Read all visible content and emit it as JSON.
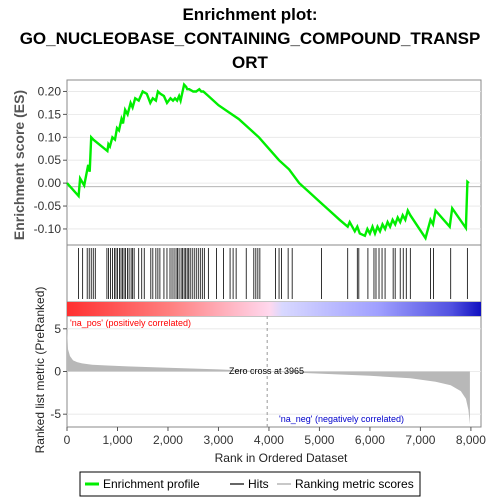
{
  "title_lines": [
    "Enrichment plot:",
    "GO_NUCLEOBASE_CONTAINING_COMPOUND_TRANSP",
    "ORT"
  ],
  "colors": {
    "es_line": "#00ee00",
    "hits": "#000000",
    "metric_fill": "#b8b8b8",
    "pos_label": "#ff0000",
    "neg_label": "#0000cc",
    "zero_line": "#999999"
  },
  "chart_data": [
    {
      "type": "line",
      "ylabel": "Enrichment score (ES)",
      "xlim": [
        0,
        8200
      ],
      "ylim": [
        -0.135,
        0.225
      ],
      "yticks": [
        -0.1,
        -0.05,
        0.0,
        0.05,
        0.1,
        0.15,
        0.2
      ],
      "ytick_labels": [
        "-0.10",
        "-0.05",
        "0.00",
        "0.05",
        "0.10",
        "0.15",
        "0.20"
      ],
      "series": [
        {
          "x": [
            0,
            230,
            260,
            340,
            420,
            450,
            480,
            520,
            800,
            820,
            850,
            900,
            950,
            990,
            1030,
            1080,
            1110,
            1150,
            1200,
            1260,
            1300,
            1350,
            1420,
            1500,
            1580,
            1650,
            1700,
            1760,
            1800,
            1850,
            1920,
            1980,
            2050,
            2100,
            2140,
            2180,
            2220,
            2250,
            2280,
            2320,
            2360,
            2380,
            2420,
            2500,
            2560,
            2620,
            2660,
            2700,
            2800,
            3000,
            3200,
            3400,
            3600,
            3800,
            4000,
            4200,
            4400,
            4600,
            4800,
            5000,
            5200,
            5400,
            5560,
            5600,
            5700,
            5750,
            5800,
            5900,
            5950,
            6000,
            6050,
            6100,
            6150,
            6200,
            6250,
            6300,
            6350,
            6400,
            6450,
            6500,
            6550,
            6600,
            6650,
            6700,
            6750,
            6800,
            7100,
            7200,
            7250,
            7300,
            7580,
            7630,
            7900,
            7930,
            7960
          ],
          "y": [
            0.0,
            -0.028,
            0.01,
            -0.005,
            0.04,
            0.025,
            0.1,
            0.095,
            0.07,
            0.085,
            0.08,
            0.1,
            0.095,
            0.12,
            0.115,
            0.14,
            0.13,
            0.16,
            0.15,
            0.175,
            0.165,
            0.185,
            0.18,
            0.2,
            0.195,
            0.175,
            0.185,
            0.18,
            0.2,
            0.195,
            0.19,
            0.175,
            0.185,
            0.18,
            0.185,
            0.18,
            0.19,
            0.18,
            0.195,
            0.215,
            0.21,
            0.205,
            0.205,
            0.2,
            0.2,
            0.205,
            0.2,
            0.2,
            0.19,
            0.17,
            0.155,
            0.14,
            0.12,
            0.1,
            0.075,
            0.05,
            0.03,
            0.0,
            -0.02,
            -0.04,
            -0.06,
            -0.08,
            -0.095,
            -0.085,
            -0.105,
            -0.095,
            -0.11,
            -0.115,
            -0.1,
            -0.11,
            -0.095,
            -0.11,
            -0.095,
            -0.105,
            -0.09,
            -0.1,
            -0.085,
            -0.095,
            -0.08,
            -0.09,
            -0.075,
            -0.085,
            -0.07,
            -0.08,
            -0.06,
            -0.07,
            -0.12,
            -0.08,
            -0.09,
            -0.06,
            -0.095,
            -0.055,
            -0.098,
            0.003,
            0.0
          ]
        }
      ]
    },
    {
      "type": "bar",
      "name": "hits",
      "x": [
        230,
        310,
        400,
        440,
        480,
        520,
        560,
        790,
        820,
        860,
        900,
        940,
        970,
        1000,
        1040,
        1070,
        1100,
        1130,
        1160,
        1200,
        1230,
        1270,
        1300,
        1330,
        1420,
        1480,
        1530,
        1660,
        1700,
        1760,
        1800,
        1840,
        1920,
        1980,
        2040,
        2080,
        2120,
        2160,
        2190,
        2220,
        2260,
        2290,
        2320,
        2350,
        2380,
        2410,
        2440,
        2480,
        2520,
        2560,
        2600,
        2640,
        2680,
        2720,
        2800,
        2960,
        3100,
        3230,
        3290,
        3350,
        3550,
        3700,
        3740,
        3780,
        3820,
        4130,
        4200,
        4250,
        4380,
        4460,
        5040,
        5560,
        5750,
        5780,
        5960,
        6080,
        6120,
        6180,
        6240,
        6300,
        6460,
        6500,
        6600,
        6660,
        6720,
        6800,
        7200,
        7260,
        7600,
        7930
      ]
    },
    {
      "type": "area",
      "ylabel": "Ranked list metric (PreRanked)",
      "xlabel": "Rank in Ordered Dataset",
      "xlim": [
        0,
        8200
      ],
      "ylim": [
        -6.5,
        6.5
      ],
      "xticks": [
        0,
        1000,
        2000,
        3000,
        4000,
        5000,
        6000,
        7000,
        8000
      ],
      "xtick_labels": [
        "0",
        "1,000",
        "2,000",
        "3,000",
        "4,000",
        "5,000",
        "6,000",
        "7,000",
        "8,000"
      ],
      "yticks": [
        -5,
        0,
        5
      ],
      "ytick_labels": [
        "-5",
        "0",
        "5"
      ],
      "x": [
        0,
        20,
        60,
        120,
        200,
        300,
        500,
        800,
        1200,
        2000,
        3000,
        3965,
        5000,
        6000,
        6800,
        7300,
        7600,
        7800,
        7900,
        7950,
        7980
      ],
      "y": [
        5.2,
        2.6,
        1.8,
        1.3,
        1.1,
        0.95,
        0.8,
        0.7,
        0.6,
        0.45,
        0.25,
        0.0,
        -0.25,
        -0.5,
        -0.8,
        -1.2,
        -1.6,
        -2.3,
        -3.2,
        -4.5,
        -6.2
      ],
      "annotations": {
        "pos": "'na_pos' (positively correlated)",
        "neg": "'na_neg' (negatively correlated)",
        "zero": "Zero cross at 3965"
      },
      "zero_cross": 3965
    }
  ],
  "legend": [
    {
      "label": "Enrichment profile",
      "color": "#00ee00"
    },
    {
      "label": "Hits",
      "color": "#666666"
    },
    {
      "label": "Ranking metric scores",
      "color": "#c8c8c8"
    }
  ]
}
